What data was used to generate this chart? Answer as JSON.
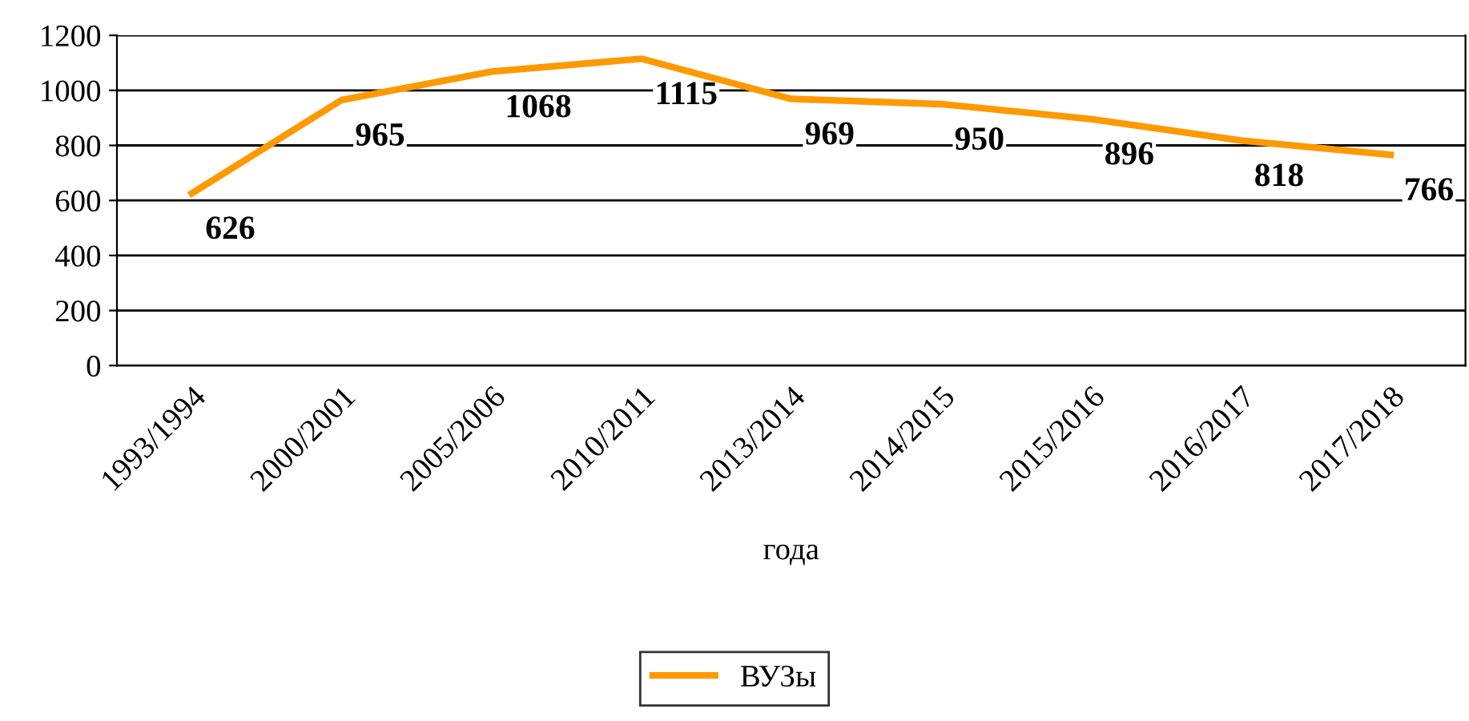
{
  "chart_data": {
    "type": "line",
    "xlabel": "года",
    "categories": [
      "1993/1994",
      "2000/2001",
      "2005/2006",
      "2010/2011",
      "2013/2014",
      "2014/2015",
      "2015/2016",
      "2016/2017",
      "2017/2018"
    ],
    "series": [
      {
        "name": "ВУЗы",
        "color": "#ff9900",
        "values": [
          626,
          965,
          1068,
          1115,
          969,
          950,
          896,
          818,
          766
        ]
      }
    ],
    "ylim": [
      0,
      1200
    ],
    "yticks": [
      0,
      200,
      400,
      600,
      800,
      1000,
      1200
    ],
    "grid": "y",
    "legend": "bottom",
    "data_labels": true,
    "marker": "none",
    "line_style": "solid"
  }
}
